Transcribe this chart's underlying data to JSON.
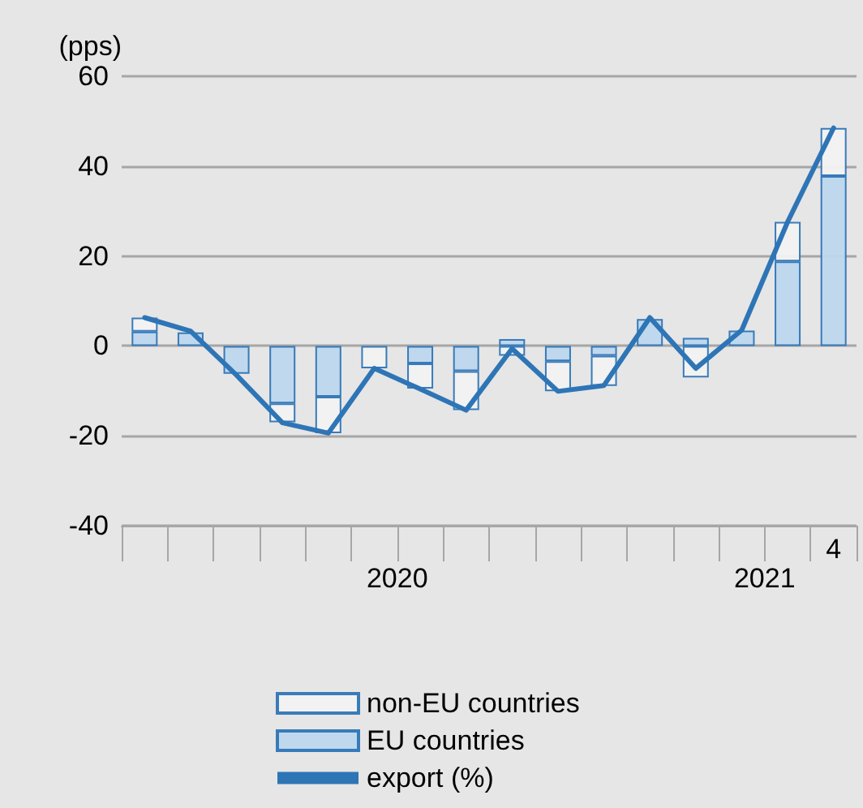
{
  "chart_data": {
    "type": "bar",
    "ylabel": "(pps)",
    "stacked": true,
    "grid": "y",
    "legend": "bottom",
    "marker": "none",
    "line_style": "solid",
    "categories": [
      null,
      null,
      null,
      null,
      null,
      null,
      null,
      null,
      null,
      null,
      null,
      null,
      null,
      null,
      null,
      "4"
    ],
    "annotations": [
      "2020",
      "2021"
    ],
    "ylim": [
      -40,
      60
    ],
    "yticks": [
      -40,
      -20,
      0,
      20,
      40,
      60
    ],
    "series": [
      {
        "name": "EU countries",
        "color": "#bdd7ee",
        "values": [
          3.2,
          3.0,
          -6.2,
          -12.8,
          -11.3,
          null,
          -3.9,
          -5.6,
          1.5,
          -3.4,
          -2.2,
          6.0,
          1.8,
          3.4,
          18.8,
          37.8
        ]
      },
      {
        "name": "non-EU countries",
        "color": "#f2f2f2",
        "values": [
          3.1,
          null,
          null,
          -4.2,
          -8.1,
          -5.0,
          -5.6,
          -8.7,
          -2.2,
          -6.7,
          -6.7,
          null,
          -7.0,
          null,
          8.8,
          10.7
        ]
      },
      {
        "name": "export (%)",
        "type": "line",
        "color": "#2e75b6",
        "values": [
          6.3,
          3.3,
          -6.5,
          -17.1,
          -19.4,
          -5.0,
          -9.6,
          -14.3,
          -0.6,
          -10.1,
          -8.8,
          6.3,
          -5.0,
          3.5,
          27.6,
          48.5
        ]
      }
    ]
  }
}
